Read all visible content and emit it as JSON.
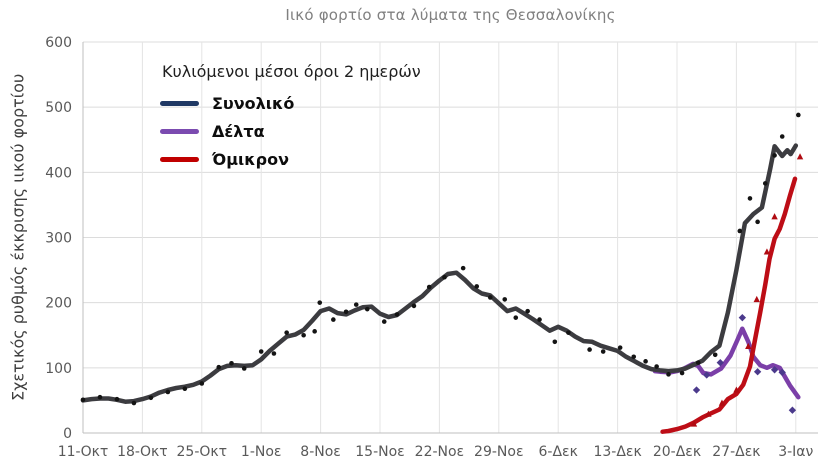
{
  "page": {
    "background": "#ffffff"
  },
  "legend": {
    "title": "Κυλιόμενοι μέσοι όροι 2 ημερών",
    "items": [
      {
        "key": "synoliko",
        "label": "Συνολικό",
        "color": "#1f3864"
      },
      {
        "key": "delta",
        "label": "Δέλτα",
        "color": "#7b4bb0"
      },
      {
        "key": "omikron",
        "label": "Όμικρον",
        "color": "#c00000"
      }
    ]
  },
  "chart_data": {
    "type": "line",
    "title": "Ιικό φορτίο στα λύματα της Θεσσαλονίκης",
    "ylabel": "Σχετικός ρυθμός έκκρισης ιικού φορτίου",
    "xlabel": "",
    "ylim": [
      0,
      600
    ],
    "y_ticks": [
      0,
      100,
      200,
      300,
      400,
      500,
      600
    ],
    "x_tick_labels": [
      "11-Οκτ",
      "18-Οκτ",
      "25-Οκτ",
      "1-Νοε",
      "8-Νοε",
      "15-Νοε",
      "22-Νοε",
      "29-Νοε",
      "6-Δεκ",
      "13-Δεκ",
      "20-Δεκ",
      "27-Δεκ",
      "3-Ιαν"
    ],
    "x_tick_days": [
      0,
      7,
      14,
      21,
      28,
      35,
      42,
      49,
      56,
      63,
      70,
      77,
      84
    ],
    "x_unit": "days from 11-Οκτ",
    "grid": true,
    "legend_position": "upper left inside",
    "series": [
      {
        "key": "delta",
        "name": "Δέλτα",
        "color": "#7b3fa8",
        "width": 4.5,
        "x": [
          67.4,
          68,
          69.2,
          70,
          70.7,
          71.9,
          72.5,
          73.1,
          74,
          75.2,
          76.3,
          77.1,
          77.7,
          78.4,
          79,
          79.8,
          80.6,
          81.3,
          82.1,
          83.3,
          84.3
        ],
        "values": [
          95,
          94,
          93,
          95,
          98,
          106,
          103,
          92,
          90,
          99,
          119,
          142,
          160,
          140,
          117,
          104,
          100,
          104,
          100,
          73,
          55
        ]
      },
      {
        "key": "omikron",
        "name": "Όμικρον",
        "color": "#bd0d16",
        "width": 4.5,
        "x": [
          68.3,
          69,
          70,
          71,
          72,
          73,
          74,
          75,
          76,
          77,
          77.8,
          78.6,
          79.2,
          79.8,
          80.4,
          80.9,
          81.5,
          82.1,
          82.7,
          83.3,
          83.9
        ],
        "values": [
          2,
          3,
          6,
          10,
          16,
          24,
          30,
          36,
          52,
          60,
          74,
          102,
          144,
          185,
          228,
          267,
          298,
          313,
          336,
          364,
          390
        ]
      },
      {
        "key": "synoliko",
        "name": "Συνολικό",
        "color": "#3c3c40",
        "width": 4.5,
        "x": [
          0,
          1,
          2,
          3,
          4,
          5,
          6,
          7,
          8,
          9,
          10,
          11,
          12,
          13,
          14,
          15,
          16,
          17,
          18,
          19,
          20,
          21,
          22,
          23,
          24,
          25,
          26,
          27,
          28,
          29,
          30,
          31,
          32,
          33,
          34,
          35,
          36,
          37,
          38,
          39,
          40,
          41,
          42,
          43,
          44,
          45,
          46,
          47,
          48,
          49,
          50,
          51,
          52,
          53,
          54,
          55,
          56,
          57,
          58,
          59,
          60,
          61,
          62,
          63,
          64,
          65,
          66,
          67,
          68,
          69,
          70,
          71,
          72,
          73,
          74,
          75,
          76,
          77,
          78,
          79,
          80,
          81,
          81.5,
          82.4,
          83,
          83.4,
          84
        ],
        "values": [
          50,
          52,
          53,
          53,
          51,
          48,
          49,
          52,
          56,
          62,
          66,
          69,
          71,
          74,
          79,
          88,
          98,
          103,
          104,
          103,
          104,
          113,
          126,
          137,
          148,
          151,
          158,
          172,
          187,
          191,
          184,
          182,
          188,
          193,
          194,
          183,
          178,
          181,
          191,
          201,
          210,
          223,
          234,
          244,
          246,
          235,
          222,
          214,
          211,
          199,
          187,
          191,
          183,
          175,
          166,
          157,
          163,
          157,
          148,
          141,
          140,
          134,
          130,
          126,
          117,
          110,
          103,
          98,
          96,
          95,
          96,
          99,
          105,
          111,
          124,
          134,
          185,
          250,
          322,
          336,
          346,
          406,
          440,
          425,
          434,
          428,
          441
        ]
      }
    ],
    "scatter": [
      {
        "key": "synoliko-daily",
        "name": "Συνολικό",
        "marker": "circle",
        "color": "#141414",
        "points": [
          [
            0,
            51
          ],
          [
            2,
            55
          ],
          [
            4,
            52
          ],
          [
            6,
            46
          ],
          [
            8,
            54
          ],
          [
            10,
            63
          ],
          [
            12,
            68
          ],
          [
            14,
            76
          ],
          [
            16,
            101
          ],
          [
            17.5,
            107
          ],
          [
            19,
            99
          ],
          [
            21,
            125
          ],
          [
            22.5,
            122
          ],
          [
            24,
            154
          ],
          [
            26,
            150
          ],
          [
            27.3,
            156
          ],
          [
            27.9,
            200
          ],
          [
            29.5,
            174
          ],
          [
            31,
            186
          ],
          [
            32.2,
            197
          ],
          [
            33.5,
            190
          ],
          [
            35.5,
            171
          ],
          [
            37,
            182
          ],
          [
            39,
            195
          ],
          [
            40.8,
            224
          ],
          [
            42.6,
            239
          ],
          [
            44.8,
            253
          ],
          [
            46.4,
            225
          ],
          [
            48,
            208
          ],
          [
            49.7,
            205
          ],
          [
            51,
            177
          ],
          [
            52.4,
            187
          ],
          [
            53.8,
            174
          ],
          [
            55.6,
            140
          ],
          [
            57.2,
            154
          ],
          [
            59.7,
            128
          ],
          [
            61.3,
            125
          ],
          [
            63.3,
            131
          ],
          [
            64.9,
            117
          ],
          [
            66.3,
            110
          ],
          [
            67.6,
            102
          ],
          [
            69,
            90
          ],
          [
            70.6,
            92
          ],
          [
            72.5,
            108
          ],
          [
            74.5,
            120
          ],
          [
            77.4,
            310
          ],
          [
            78.6,
            360
          ],
          [
            79.5,
            324
          ],
          [
            80.4,
            383
          ],
          [
            81.5,
            426
          ],
          [
            82.4,
            455
          ],
          [
            84.3,
            488
          ]
        ]
      },
      {
        "key": "delta-daily",
        "name": "Δέλτα",
        "marker": "diamond",
        "color": "#4b3a8c",
        "points": [
          [
            72.3,
            66
          ],
          [
            73.5,
            89
          ],
          [
            75.1,
            108
          ],
          [
            77.7,
            177
          ],
          [
            79.5,
            94
          ],
          [
            81.5,
            97
          ],
          [
            82.4,
            93
          ],
          [
            83.6,
            35
          ]
        ]
      },
      {
        "key": "omikron-daily",
        "name": "Όμικρον",
        "marker": "triangle",
        "color": "#b00b12",
        "points": [
          [
            72,
            14
          ],
          [
            73.7,
            29
          ],
          [
            75.3,
            46
          ],
          [
            77,
            66
          ],
          [
            78.4,
            133
          ],
          [
            79.4,
            205
          ],
          [
            80.6,
            278
          ],
          [
            81.5,
            332
          ],
          [
            84.5,
            424
          ]
        ]
      }
    ]
  }
}
